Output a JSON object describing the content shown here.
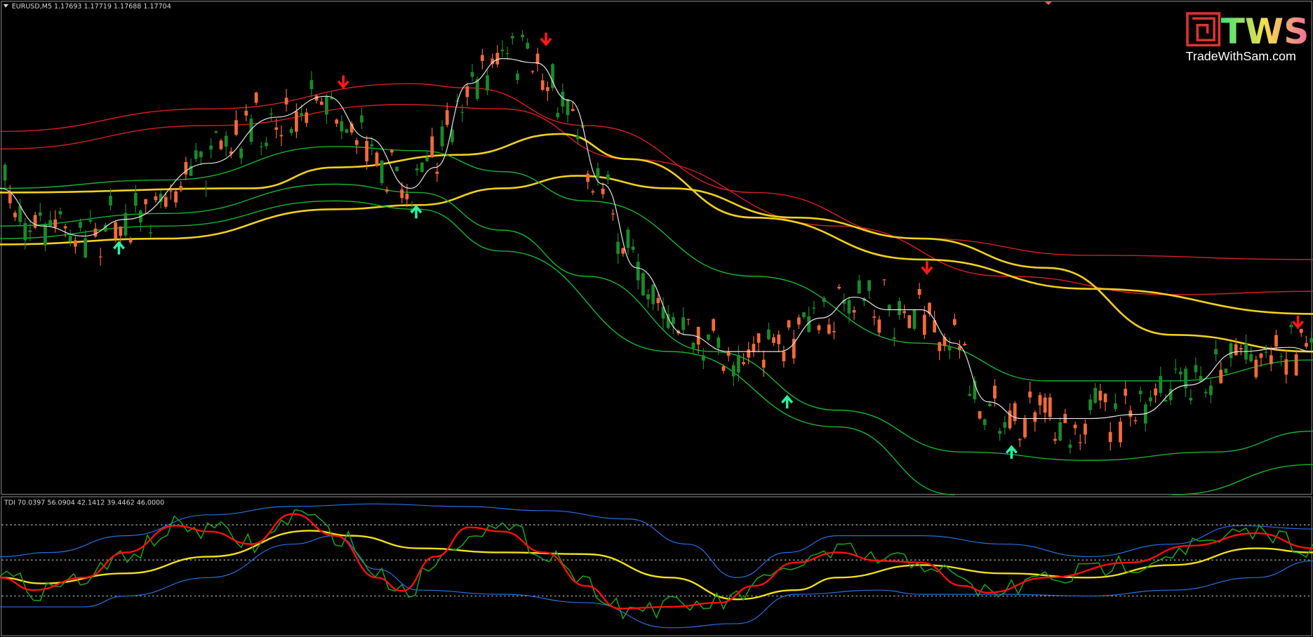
{
  "header": {
    "symbol_info": "EURUSD,M5 1.17693 1.17719 1.17688 1.17704"
  },
  "indicator": {
    "label": "TDI 70.0397 56.0904 42.1412 39.4462 46.0000"
  },
  "logo": {
    "title": "TWS",
    "site": "TradeWithSam.com"
  }
}
